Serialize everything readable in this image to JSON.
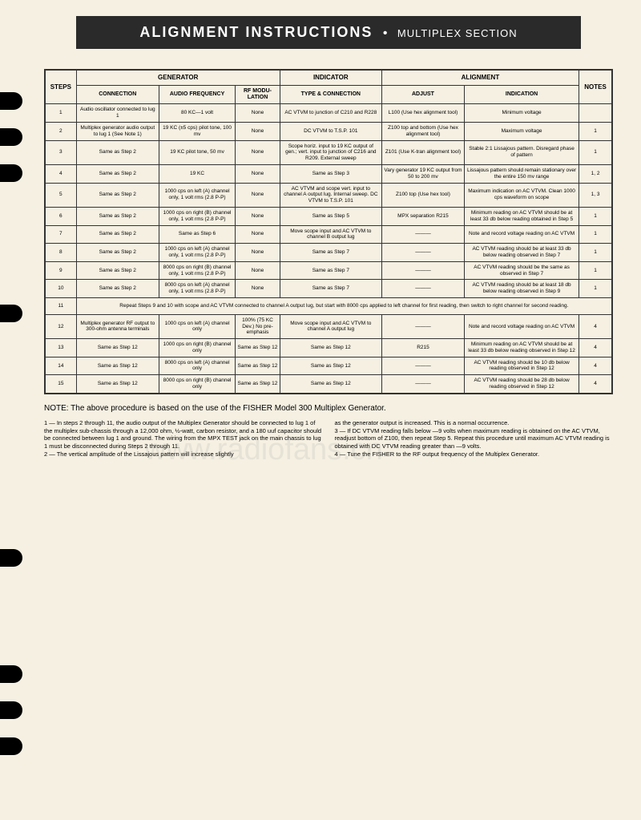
{
  "header": {
    "main": "ALIGNMENT INSTRUCTIONS",
    "sub": "MULTIPLEX SECTION"
  },
  "groupHeaders": {
    "generator": "GENERATOR",
    "indicator": "INDICATOR",
    "alignment": "ALIGNMENT"
  },
  "colHeaders": {
    "steps": "STEPS",
    "connection": "CONNECTION",
    "audioFreq": "AUDIO FREQUENCY",
    "rfMod": "RF MODU-LATION",
    "typeConn": "TYPE & CONNECTION",
    "adjust": "ADJUST",
    "indication": "INDICATION",
    "notes": "NOTES"
  },
  "rows": [
    {
      "step": "1",
      "conn": "Audio oscillator connected to lug 1",
      "freq": "80 KC—1 volt",
      "rf": "None",
      "type": "AC VTVM to junction of C210 and R228",
      "adj": "L100 (Use hex alignment tool)",
      "ind": "Minimum voltage",
      "notes": ""
    },
    {
      "step": "2",
      "conn": "Multiplex generator audio output to lug 1 (See Note 1)",
      "freq": "19 KC (±5 cps) pilot tone, 100 mv",
      "rf": "None",
      "type": "DC VTVM to T.S.P. 101",
      "adj": "Z100 top and bottom (Use hex alignment tool)",
      "ind": "Maximum voltage",
      "notes": "1"
    },
    {
      "step": "3",
      "conn": "Same as Step 2",
      "freq": "19 KC pilot tone, 50 mv",
      "rf": "None",
      "type": "Scope horiz. input to 19 KC output of gen.; vert. input to junction of C216 and R209. External sweep",
      "adj": "Z101 (Use K-tran alignment tool)",
      "ind": "Stable 2:1 Lissajous pattern. Disregard phase of pattern",
      "notes": "1"
    },
    {
      "step": "4",
      "conn": "Same as Step 2",
      "freq": "19 KC",
      "rf": "None",
      "type": "Same as Step 3",
      "adj": "Vary generator 19 KC output from 50 to 200 mv",
      "ind": "Lissajous pattern should remain stationary over the entire 150 mv range",
      "notes": "1, 2"
    },
    {
      "step": "5",
      "conn": "Same as Step 2",
      "freq": "1000 cps on left (A) channel only, 1 volt rms (2.8 P-P)",
      "rf": "None",
      "type": "AC VTVM and scope vert. input to channel A output lug. Internal sweep. DC VTVM to T.S.P. 101",
      "adj": "Z100 top (Use hex tool)",
      "ind": "Maximum indication on AC VTVM. Clean 1000 cps waveform on scope",
      "notes": "1, 3"
    },
    {
      "step": "6",
      "conn": "Same as Step 2",
      "freq": "1000 cps on right (B) channel only, 1 volt rms (2.8 P-P)",
      "rf": "None",
      "type": "Same as Step 5",
      "adj": "MPX separation R215",
      "ind": "Minimum reading on AC VTVM should be at least 33 db below reading obtained in Step 5",
      "notes": "1"
    },
    {
      "step": "7",
      "conn": "Same as Step 2",
      "freq": "Same as Step 6",
      "rf": "None",
      "type": "Move scope input and AC VTVM to channel B output lug",
      "adj": "———",
      "ind": "Note and record voltage reading on AC VTVM",
      "notes": "1"
    },
    {
      "step": "8",
      "conn": "Same as Step 2",
      "freq": "1000 cps on left (A) channel only, 1 volt rms (2.8 P-P)",
      "rf": "None",
      "type": "Same as Step 7",
      "adj": "———",
      "ind": "AC VTVM reading should be at least 33 db below reading observed in Step 7",
      "notes": "1"
    },
    {
      "step": "9",
      "conn": "Same as Step 2",
      "freq": "8000 cps on right (B) channel only, 1 volt rms (2.8 P-P)",
      "rf": "None",
      "type": "Same as Step 7",
      "adj": "———",
      "ind": "AC VTVM reading should be the same as observed in Step 7",
      "notes": "1"
    },
    {
      "step": "10",
      "conn": "Same as Step 2",
      "freq": "8000 cps on left (A) channel only, 1 volt rms (2.8 P-P)",
      "rf": "None",
      "type": "Same as Step 7",
      "adj": "———",
      "ind": "AC VTVM reading should be at least 18 db below reading observed in Step 9",
      "notes": "1"
    },
    {
      "step": "11",
      "span": true,
      "text": "Repeat Steps 9 and 10 with scope and AC VTVM connected to channel A output lug, but start with 8000 cps applied to left channel for first reading, then switch to right channel for second reading."
    },
    {
      "step": "12",
      "conn": "Multiplex generator RF output to 300-ohm antenna terminals",
      "freq": "1000 cps on left (A) channel only",
      "rf": "100% (75 KC Dev.) No pre-emphasis",
      "type": "Move scope input and AC VTVM to channel A output lug",
      "adj": "———",
      "ind": "Note and record voltage reading on AC VTVM",
      "notes": "4"
    },
    {
      "step": "13",
      "conn": "Same as Step 12",
      "freq": "1000 cps on right (B) channel only",
      "rf": "Same as Step 12",
      "type": "Same as Step 12",
      "adj": "R215",
      "ind": "Minimum reading on AC VTVM should be at least 33 db below reading observed in Step 12",
      "notes": "4"
    },
    {
      "step": "14",
      "conn": "Same as Step 12",
      "freq": "8000 cps on left (A) channel only",
      "rf": "Same as Step 12",
      "type": "Same as Step 12",
      "adj": "———",
      "ind": "AC VTVM reading should be 10 db below reading observed in Step 12",
      "notes": "4"
    },
    {
      "step": "15",
      "conn": "Same as Step 12",
      "freq": "8000 cps on right (B) channel only",
      "rf": "Same as Step 12",
      "type": "Same as Step 12",
      "adj": "———",
      "ind": "AC VTVM reading should be 28 db below reading observed in Step 12",
      "notes": "4"
    }
  ],
  "noteMain": "NOTE: The above procedure is based on the use of the FISHER Model 300 Multiplex Generator.",
  "footnotes": {
    "left": "1 — In steps 2 through 11, the audio output of the Multiplex Generator should be connected to lug 1 of the multiplex sub-chassis through a 12,000 ohm, ½-watt, carbon resistor, and a 180 uuf capacitor should be connected between lug 1 and ground. The wiring from the MPX TEST jack on the main chassis to lug 1 must be disconnected during Steps 2 through 11.\n2 — The vertical amplitude of the Lissajous pattern will increase slightly",
    "right": "as the generator output is increased. This is a normal occurrence.\n3 — If DC VTVM reading falls below —9 volts when maximum reading is obtained on the AC VTVM, readjust bottom of Z100, then repeat Step 5. Repeat this procedure until maximum AC VTVM reading is obtained with DC VTVM reading greater than —9 volts.\n4 — Tune the FISHER to the RF output frequency of the Multiplex Generator."
  },
  "watermark": "www.radiofans.cn",
  "holePositions": [
    115,
    160,
    205,
    380,
    685,
    830,
    875,
    920
  ]
}
